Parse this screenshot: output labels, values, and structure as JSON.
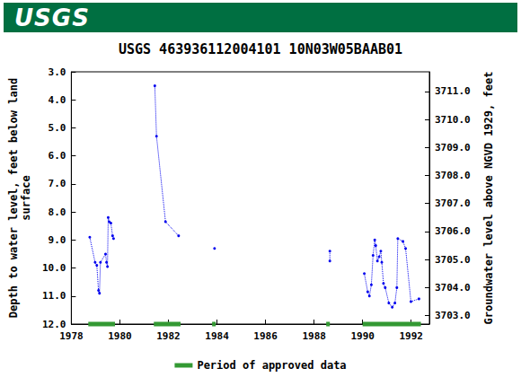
{
  "header": {
    "logo_text": "USGS"
  },
  "chart_data": {
    "type": "line",
    "title": "USGS 463936112004101 10N03W05BAAB01",
    "y_label": "Depth to water level, feet below land surface",
    "y2_label": "Groundwater level above NGVD 1929, feet",
    "x": [
      1978.76,
      1978.98,
      1979.05,
      1979.12,
      1979.16,
      1979.2,
      1979.41,
      1979.45,
      1979.49,
      1979.52,
      1979.56,
      1979.63,
      1979.7,
      1979.74,
      null,
      1981.44,
      1981.51,
      1981.88,
      1982.42,
      null,
      1983.9,
      null,
      1988.65,
      1988.65,
      null,
      1990.07,
      1990.21,
      1990.28,
      1990.36,
      1990.43,
      1990.5,
      1990.54,
      1990.61,
      1990.68,
      1990.75,
      1990.79,
      1990.86,
      1990.93,
      1991.08,
      1991.22,
      1991.33,
      1991.41,
      1991.45,
      1991.66,
      1991.77,
      1991.99,
      1992.32
    ],
    "series": [
      {
        "name": "Depth to water level",
        "color": "#0000ee",
        "marker": "circle",
        "line_style": "dotted",
        "values": [
          8.9,
          9.8,
          9.9,
          10.8,
          10.9,
          9.8,
          9.5,
          9.8,
          9.95,
          8.2,
          8.35,
          8.4,
          8.85,
          8.95,
          null,
          3.5,
          5.3,
          8.35,
          8.85,
          null,
          9.3,
          null,
          9.4,
          9.75,
          null,
          10.2,
          10.85,
          11.0,
          10.6,
          9.55,
          9.0,
          9.2,
          9.75,
          9.6,
          9.4,
          9.8,
          10.55,
          10.7,
          11.25,
          11.4,
          11.25,
          10.7,
          8.95,
          9.05,
          9.3,
          11.2,
          11.1
        ]
      }
    ],
    "approved_periods": {
      "name": "Period of approved data",
      "color": "#339933",
      "ranges": [
        [
          1978.7,
          1979.8
        ],
        [
          1981.4,
          1982.5
        ],
        [
          1983.8,
          1983.95
        ],
        [
          1988.5,
          1988.65
        ],
        [
          1990.0,
          1992.4
        ]
      ]
    },
    "xlim": [
      1978,
      1992.75
    ],
    "xticks": [
      1978,
      1980,
      1982,
      1984,
      1986,
      1988,
      1990,
      1992
    ],
    "ylim": [
      3,
      12
    ],
    "yticks": [
      {
        "value": 3,
        "label": "3.0"
      },
      {
        "value": 4,
        "label": "4.0"
      },
      {
        "value": 5,
        "label": "5.0"
      },
      {
        "value": 6,
        "label": "6.0"
      },
      {
        "value": 7,
        "label": "7.0"
      },
      {
        "value": 8,
        "label": "8.0"
      },
      {
        "value": 9,
        "label": "9.0"
      },
      {
        "value": 10,
        "label": "10.0"
      },
      {
        "value": 11,
        "label": "11.0"
      },
      {
        "value": 12,
        "label": "12.0"
      }
    ],
    "y2lim": [
      3702.7,
      3711.7
    ],
    "y2ticks": [
      {
        "value": 3703,
        "label": "3703.0"
      },
      {
        "value": 3704,
        "label": "3704.0"
      },
      {
        "value": 3705,
        "label": "3705.0"
      },
      {
        "value": 3706,
        "label": "3706.0"
      },
      {
        "value": 3707,
        "label": "3707.0"
      },
      {
        "value": 3708,
        "label": "3708.0"
      },
      {
        "value": 3709,
        "label": "3709.0"
      },
      {
        "value": 3710,
        "label": "3710.0"
      },
      {
        "value": 3711,
        "label": "3711.0"
      }
    ],
    "y_inverted": true,
    "grid": false,
    "legend": "bottom"
  }
}
